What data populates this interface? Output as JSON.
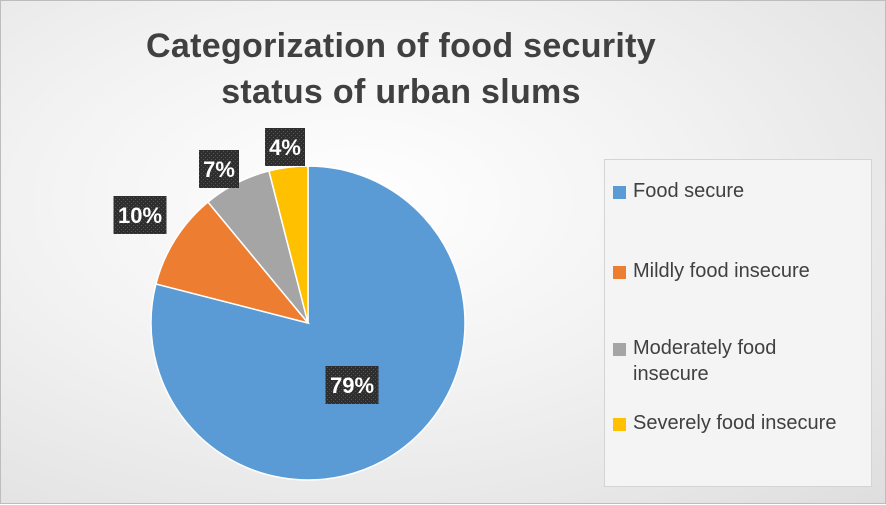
{
  "chart_data": {
    "type": "pie",
    "title": "Categorization of food security status of urban slums",
    "categories": [
      "Food secure",
      "Mildly food insecure",
      "Moderately food insecure",
      "Severely food insecure"
    ],
    "values": [
      79,
      10,
      7,
      4
    ],
    "data_labels": [
      "79%",
      "10%",
      "7%",
      "4%"
    ],
    "colors": [
      "#5b9bd5",
      "#ed7d31",
      "#a5a5a5",
      "#ffc000"
    ],
    "legend_position": "right",
    "start_angle_deg": 0,
    "direction": "clockwise"
  }
}
